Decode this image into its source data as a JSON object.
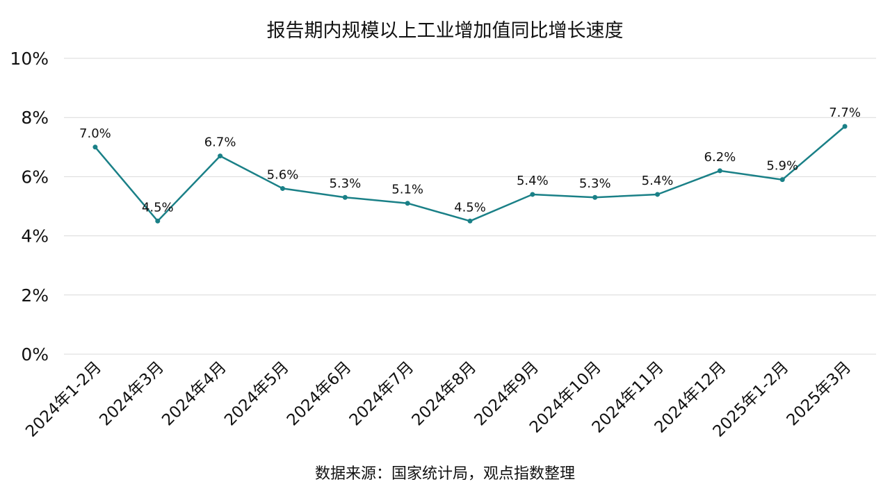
{
  "chart_data": {
    "type": "line",
    "title": "报告期内规模以上工业增加值同比增长速度",
    "source": "数据来源：国家统计局，观点指数整理",
    "categories": [
      "2024年1-2月",
      "2024年3月",
      "2024年4月",
      "2024年5月",
      "2024年6月",
      "2024年7月",
      "2024年8月",
      "2024年9月",
      "2024年10月",
      "2024年11月",
      "2024年12月",
      "2025年1-2月",
      "2025年3月"
    ],
    "series": [
      {
        "values": [
          7.0,
          4.5,
          6.7,
          5.6,
          5.3,
          5.1,
          4.5,
          5.4,
          5.3,
          5.4,
          6.2,
          5.9,
          7.7
        ]
      }
    ],
    "data_labels": [
      "7.0%",
      "4.5%",
      "6.7%",
      "5.6%",
      "5.3%",
      "5.1%",
      "4.5%",
      "5.4%",
      "5.3%",
      "5.4%",
      "6.2%",
      "5.9%",
      "7.7%"
    ],
    "yticks": [
      0,
      2,
      4,
      6,
      8,
      10
    ],
    "ytick_labels": [
      "0%",
      "2%",
      "4%",
      "6%",
      "8%",
      "10%"
    ],
    "ylim": [
      0,
      10
    ],
    "grid": true,
    "legend": "none",
    "line_color": "#1a8087",
    "grid_color": "#d9d9d9"
  }
}
